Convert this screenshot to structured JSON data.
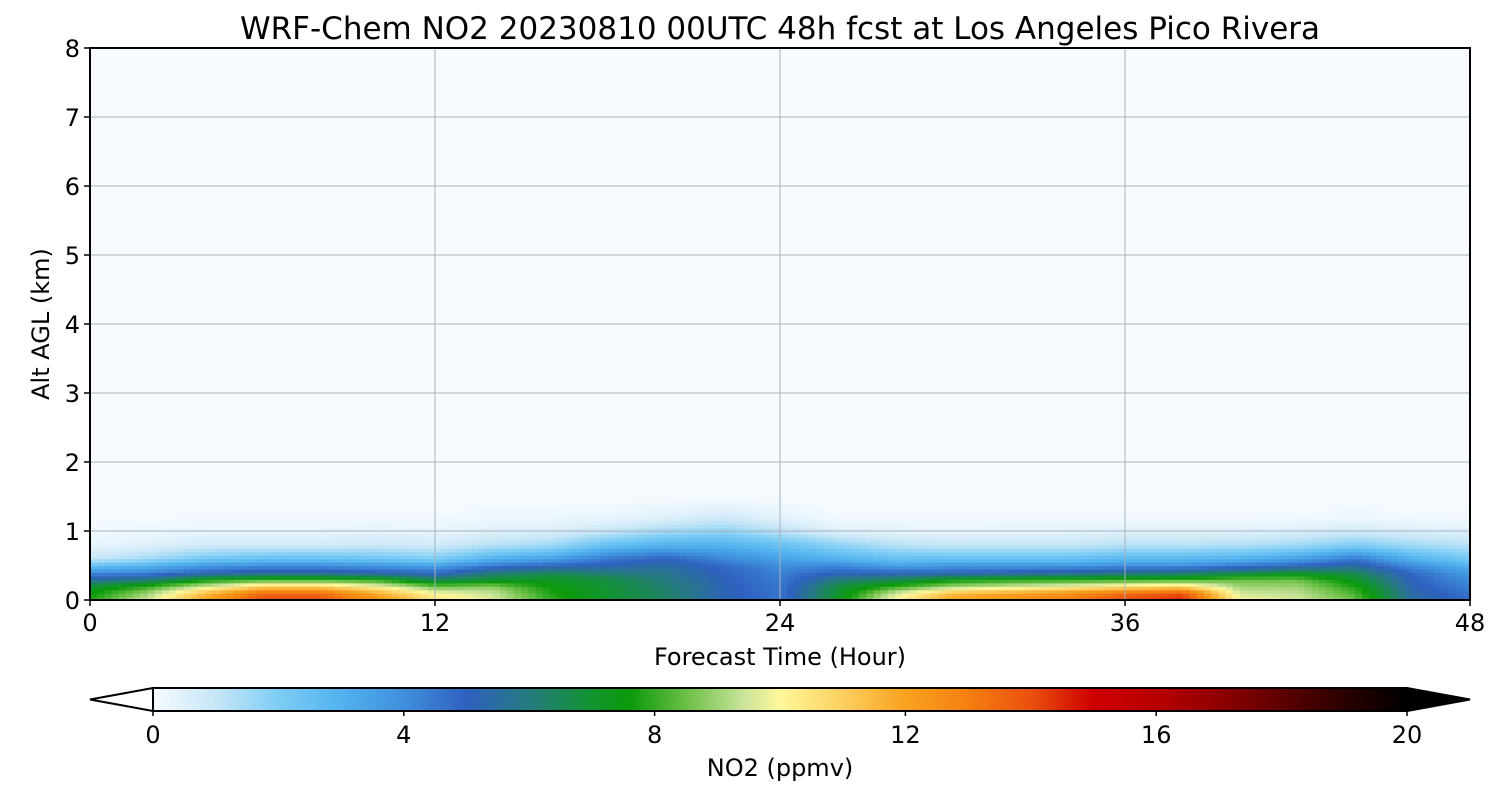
{
  "chart_data": {
    "type": "heatmap",
    "title": "WRF-Chem NO2  20230810 00UTC 48h fcst at Los Angeles Pico Rivera",
    "xlabel": "Forecast Time (Hour)",
    "ylabel": "Alt AGL (km)",
    "xlim": [
      0,
      48
    ],
    "ylim": [
      0,
      8
    ],
    "x_ticks": [
      "0",
      "12",
      "24",
      "36",
      "48"
    ],
    "y_ticks": [
      "0",
      "1",
      "2",
      "3",
      "4",
      "5",
      "6",
      "7",
      "8"
    ],
    "grid": true,
    "colorbar": {
      "label": "NO2  (ppmv)",
      "range": [
        0,
        20
      ],
      "ticks": [
        "0",
        "4",
        "8",
        "12",
        "16",
        "20"
      ],
      "extend": "both",
      "placement": "bottom"
    },
    "colorscale": [
      [
        0,
        "#f7fbff"
      ],
      [
        1,
        "#c6e6f7"
      ],
      [
        2,
        "#7ecdf5"
      ],
      [
        3,
        "#52b2ee"
      ],
      [
        4,
        "#3f8fdc"
      ],
      [
        5,
        "#2f61c0"
      ],
      [
        6,
        "#257a7e"
      ],
      [
        7,
        "#129430"
      ],
      [
        7.6,
        "#0a9a0a"
      ],
      [
        8.5,
        "#6bbf45"
      ],
      [
        9.4,
        "#c8e39a"
      ],
      [
        10,
        "#fff79a"
      ],
      [
        11,
        "#fcd060"
      ],
      [
        12,
        "#f9a220"
      ],
      [
        13,
        "#f57f10"
      ],
      [
        14,
        "#ea500e"
      ],
      [
        15,
        "#cf0000"
      ],
      [
        16,
        "#b80000"
      ],
      [
        17,
        "#8f0000"
      ],
      [
        18,
        "#5e0000"
      ],
      [
        19,
        "#2a0000"
      ],
      [
        20,
        "#000000"
      ]
    ],
    "profile_hours": [
      0,
      2,
      4,
      6,
      8,
      10,
      12,
      14,
      16,
      18,
      20,
      22,
      24,
      26,
      28,
      30,
      32,
      34,
      36,
      38,
      40,
      42,
      44,
      46,
      48
    ],
    "profile_altitudes_km": [
      0,
      0.1,
      0.2,
      0.3,
      0.4,
      0.5,
      0.6,
      0.8,
      1.0,
      1.2,
      1.5
    ],
    "no2_ppmv": [
      [
        7.8,
        7.5,
        7.0,
        5.5,
        4.0,
        2.5,
        1.0,
        0.3,
        0.1,
        0.05,
        0.0
      ],
      [
        9.5,
        9.0,
        8.0,
        6.0,
        4.2,
        3.0,
        1.5,
        0.5,
        0.2,
        0.05,
        0.0
      ],
      [
        12.0,
        11.5,
        9.5,
        7.5,
        5.0,
        3.8,
        2.2,
        0.8,
        0.3,
        0.1,
        0.0
      ],
      [
        14.0,
        13.5,
        11.0,
        8.0,
        5.5,
        4.0,
        2.5,
        0.8,
        0.3,
        0.1,
        0.0
      ],
      [
        14.0,
        13.5,
        11.0,
        8.0,
        5.5,
        4.0,
        2.5,
        0.8,
        0.3,
        0.1,
        0.0
      ],
      [
        12.5,
        11.8,
        10.0,
        7.8,
        5.2,
        3.8,
        2.3,
        0.9,
        0.4,
        0.1,
        0.0
      ],
      [
        10.5,
        10.0,
        8.5,
        6.5,
        4.8,
        3.5,
        2.0,
        0.8,
        0.3,
        0.1,
        0.0
      ],
      [
        9.6,
        9.4,
        8.8,
        7.0,
        6.0,
        4.5,
        3.0,
        1.2,
        0.5,
        0.2,
        0.0
      ],
      [
        8.0,
        7.8,
        7.6,
        7.2,
        6.5,
        5.0,
        3.5,
        1.5,
        0.6,
        0.2,
        0.0
      ],
      [
        7.0,
        7.0,
        6.9,
        6.8,
        6.0,
        5.2,
        4.5,
        2.5,
        1.0,
        0.3,
        0.0
      ],
      [
        6.4,
        6.3,
        6.2,
        6.0,
        5.8,
        5.5,
        5.0,
        3.0,
        1.5,
        0.5,
        0.0
      ],
      [
        5.2,
        5.2,
        5.2,
        5.1,
        5.0,
        4.8,
        4.2,
        3.0,
        1.8,
        0.8,
        0.0
      ],
      [
        4.6,
        4.6,
        4.5,
        4.4,
        4.3,
        4.0,
        3.5,
        2.5,
        1.2,
        0.4,
        0.0
      ],
      [
        7.2,
        7.0,
        6.8,
        6.0,
        5.0,
        4.2,
        3.0,
        1.8,
        0.5,
        0.1,
        0.0
      ],
      [
        10.0,
        9.5,
        8.0,
        6.5,
        5.0,
        3.5,
        2.5,
        1.2,
        0.4,
        0.1,
        0.0
      ],
      [
        12.0,
        11.5,
        9.0,
        7.5,
        5.0,
        3.8,
        2.5,
        1.0,
        0.3,
        0.1,
        0.0
      ],
      [
        12.5,
        12.0,
        9.5,
        7.8,
        5.2,
        3.8,
        2.5,
        1.0,
        0.4,
        0.1,
        0.0
      ],
      [
        13.0,
        12.5,
        10.0,
        7.8,
        5.5,
        3.8,
        2.5,
        1.0,
        0.4,
        0.1,
        0.0
      ],
      [
        14.0,
        13.5,
        10.5,
        7.9,
        5.8,
        4.0,
        2.8,
        1.2,
        0.5,
        0.1,
        0.0
      ],
      [
        14.5,
        14.0,
        10.8,
        8.0,
        6.0,
        4.0,
        2.8,
        1.2,
        0.5,
        0.1,
        0.0
      ],
      [
        10.0,
        9.5,
        9.0,
        8.5,
        6.5,
        4.5,
        3.0,
        1.3,
        0.5,
        0.1,
        0.0
      ],
      [
        9.5,
        9.3,
        9.0,
        8.5,
        7.0,
        5.0,
        3.5,
        1.5,
        0.6,
        0.1,
        0.0
      ],
      [
        8.5,
        8.2,
        7.8,
        7.2,
        6.5,
        5.5,
        4.5,
        2.0,
        0.8,
        0.2,
        0.0
      ],
      [
        5.5,
        5.4,
        5.2,
        5.0,
        4.8,
        4.0,
        3.0,
        1.5,
        0.6,
        0.1,
        0.0
      ],
      [
        4.8,
        4.6,
        4.3,
        4.0,
        3.6,
        3.0,
        2.2,
        1.2,
        0.5,
        0.1,
        0.0
      ]
    ]
  }
}
